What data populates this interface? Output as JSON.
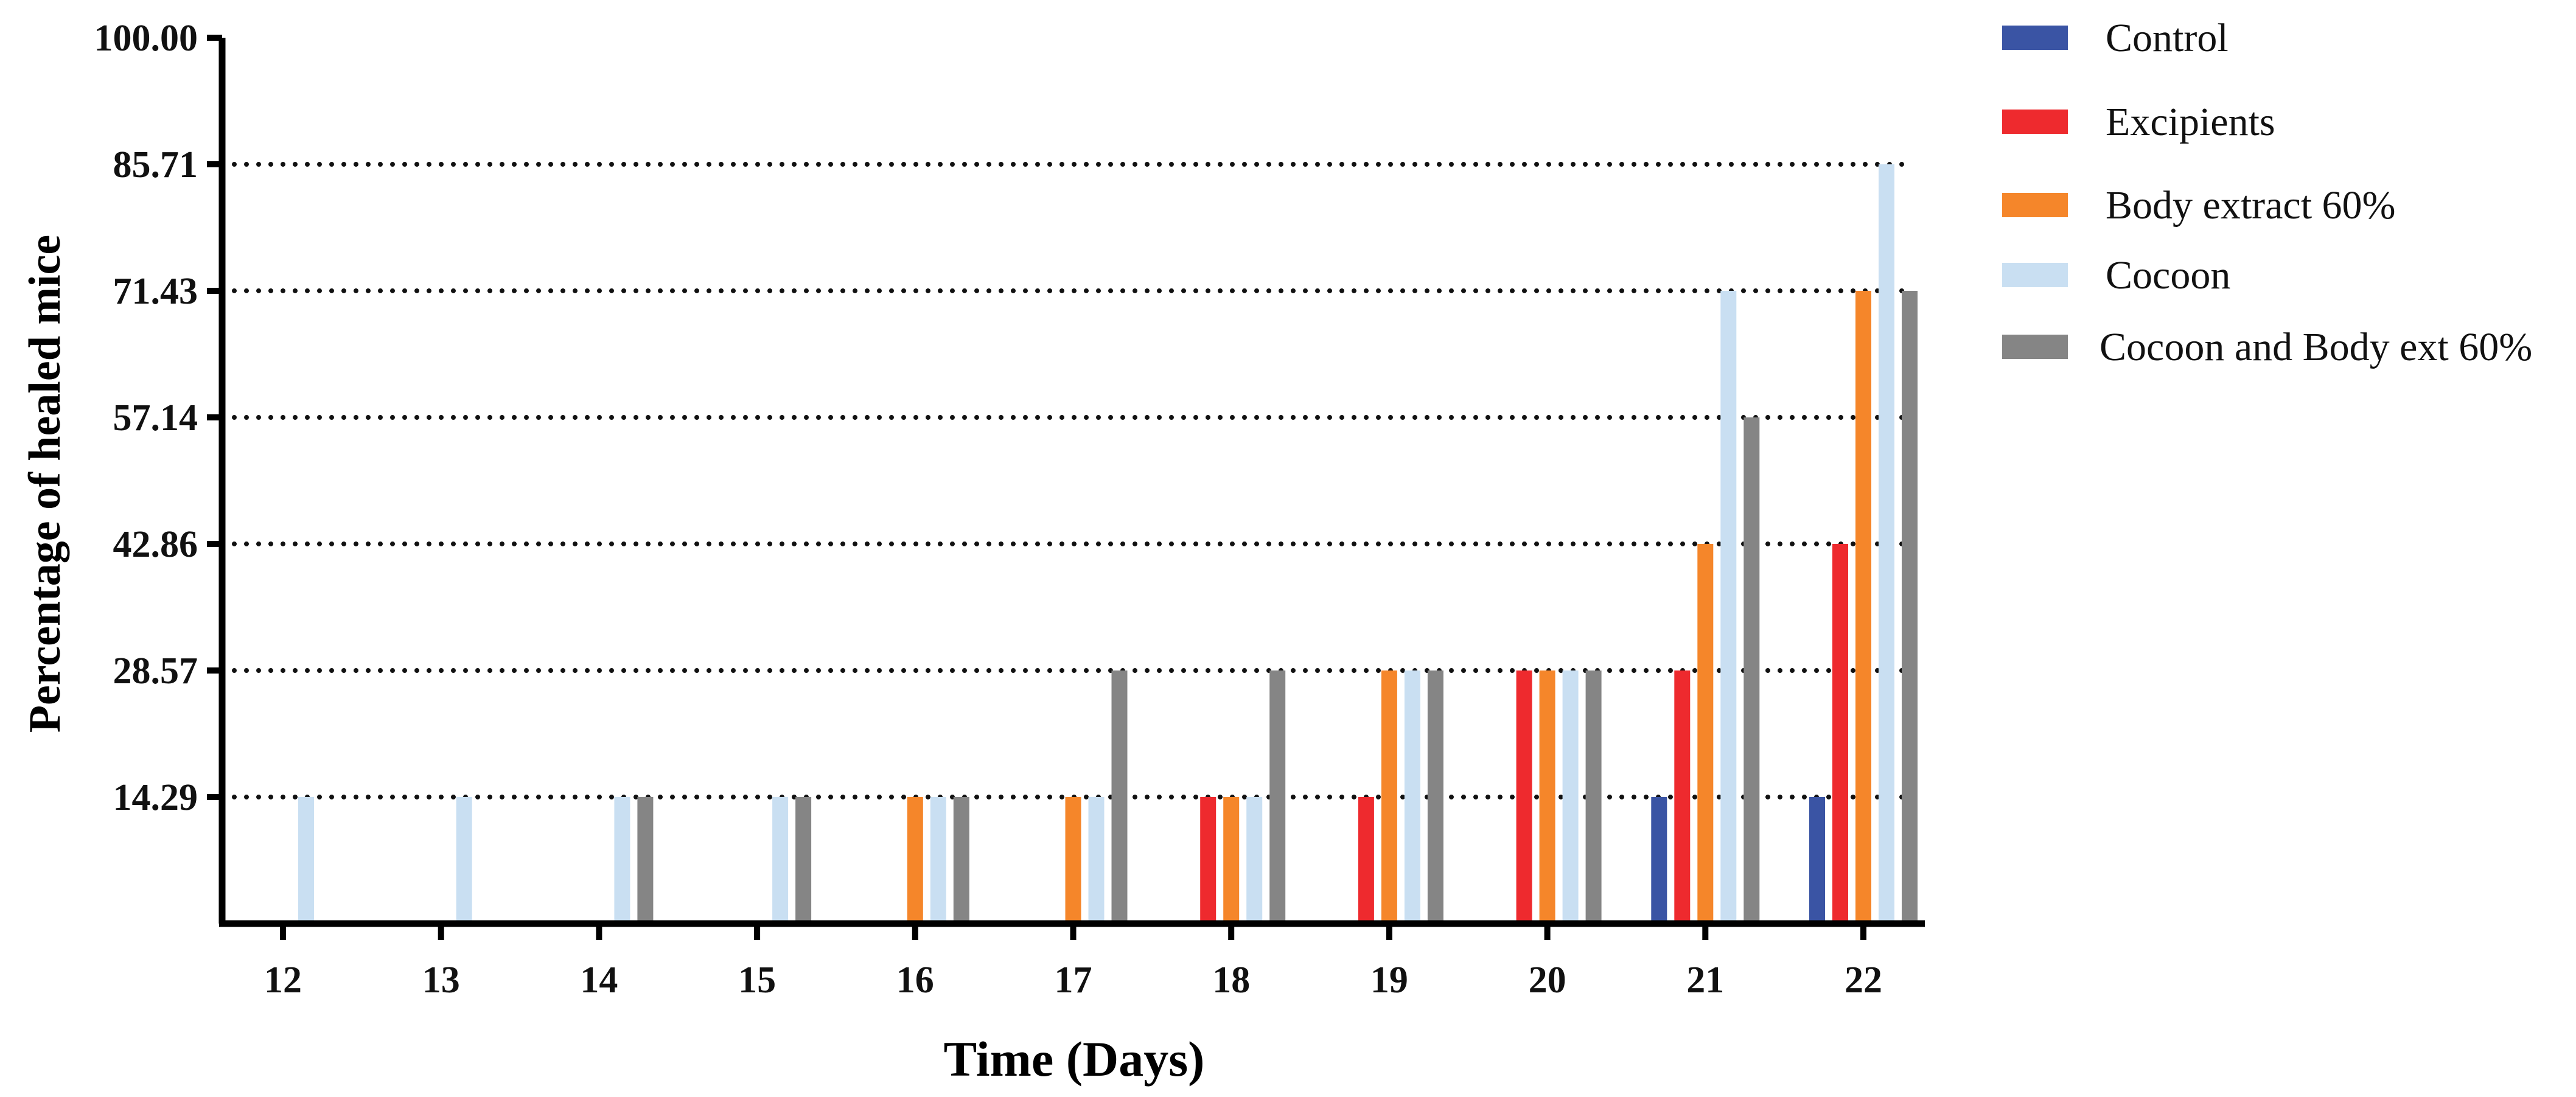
{
  "chart_data": {
    "type": "bar",
    "title": "",
    "xlabel": "Time (Days)",
    "ylabel": "Percentage of healed mice",
    "ylim": [
      0,
      100
    ],
    "yticks": [
      "14.29",
      "28.57",
      "42.86",
      "57.14",
      "71.43",
      "85.71",
      "100.00"
    ],
    "grid": "dotted horizontal at y ticks",
    "legend_position": "top-right outside",
    "categories": [
      "12",
      "13",
      "14",
      "15",
      "16",
      "17",
      "18",
      "19",
      "20",
      "21",
      "22"
    ],
    "series": [
      {
        "name": "Control",
        "color": "#3a54a4",
        "values": [
          0,
          0,
          0,
          0,
          0,
          0,
          0,
          0,
          0,
          14.29,
          14.29
        ]
      },
      {
        "name": "Excipients",
        "color": "#ee2a2e",
        "values": [
          0,
          0,
          0,
          0,
          0,
          0,
          14.29,
          14.29,
          28.57,
          28.57,
          42.86
        ]
      },
      {
        "name": "Body extract 60%",
        "color": "#f5862a",
        "values": [
          0,
          0,
          0,
          0,
          14.29,
          14.29,
          14.29,
          28.57,
          28.57,
          42.86,
          71.43
        ]
      },
      {
        "name": "Cocoon",
        "color": "#c9dff2",
        "values": [
          14.29,
          14.29,
          14.29,
          14.29,
          14.29,
          14.29,
          14.29,
          28.57,
          28.57,
          71.43,
          85.71
        ]
      },
      {
        "name": "Cocoon and Body ext 60%",
        "color": "#858585",
        "values": [
          0,
          0,
          14.29,
          14.29,
          14.29,
          28.57,
          28.57,
          28.57,
          28.57,
          57.14,
          71.43
        ]
      }
    ]
  }
}
